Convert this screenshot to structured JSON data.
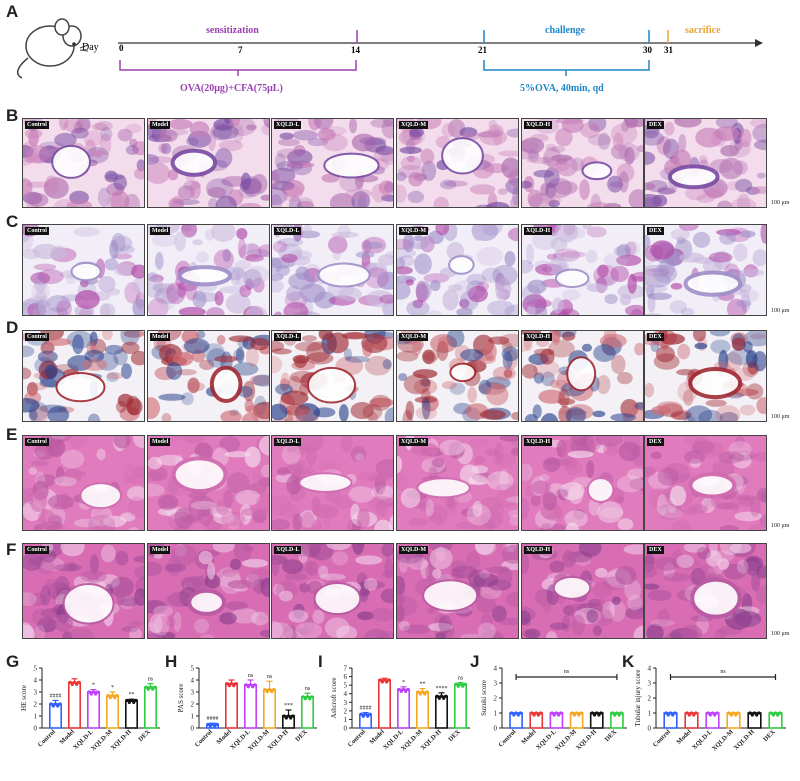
{
  "panel_letters": [
    "A",
    "B",
    "C",
    "D",
    "E",
    "F",
    "G",
    "H",
    "I",
    "J",
    "K"
  ],
  "timeline": {
    "day_label": "Day",
    "ticks": [
      "0",
      "7",
      "14",
      "21",
      "30",
      "31"
    ],
    "phase1_label": "sensitization",
    "phase1_dose": "OVA(20μg)+CFA(75μL)",
    "phase2_label": "challenge",
    "phase2_dose": "5%OVA, 40min, qd",
    "phase3_label": "sacrifice",
    "colors": {
      "sensitization": "#9b3fb0",
      "challenge": "#1f87c8",
      "sacrifice": "#e8a53a"
    }
  },
  "groups": [
    "Control",
    "Model",
    "XQLD-L",
    "XQLD-M",
    "XQLD-H",
    "DEX"
  ],
  "scale_bar": "100 μm",
  "stain_rows": [
    {
      "letter": "B",
      "stain": "HE lung",
      "colors": [
        "#f3dcec",
        "#7a4da3",
        "#c87db7",
        "#b070b0"
      ]
    },
    {
      "letter": "C",
      "stain": "PAS lung",
      "colors": [
        "#f2eef8",
        "#9f90c8",
        "#c9b8dc",
        "#b14aa8"
      ]
    },
    {
      "letter": "D",
      "stain": "Masson lung",
      "colors": [
        "#f3f1f5",
        "#a12b34",
        "#28418c",
        "#cf6a74"
      ]
    },
    {
      "letter": "E",
      "stain": "HE liver",
      "colors": [
        "#e07bbd",
        "#d06cb0",
        "#f5dcee",
        "#b95aa2"
      ]
    },
    {
      "letter": "F",
      "stain": "HE kidney",
      "colors": [
        "#d86db3",
        "#b85aa2",
        "#f1cce8",
        "#8b3f8d"
      ]
    }
  ],
  "chart_data": [
    {
      "type": "bar",
      "panel": "G",
      "ylabel": "HE score",
      "ylim": [
        0,
        5
      ],
      "yticks": [
        "0",
        "1",
        "2",
        "3",
        "4",
        "5"
      ],
      "categories": [
        "Control",
        "Model",
        "XQLD-L",
        "XQLD-M",
        "XQLD-H",
        "DEX"
      ],
      "values": [
        2.0,
        3.8,
        3.0,
        2.7,
        2.3,
        3.4
      ],
      "errors": [
        0.3,
        0.3,
        0.2,
        0.3,
        0.1,
        0.3
      ],
      "colors": [
        "#3060ff",
        "#e83535",
        "#c040ff",
        "#f5a623",
        "#111111",
        "#2ecc40"
      ],
      "annotations": [
        "####",
        "",
        "*",
        "*",
        "**",
        "ns"
      ]
    },
    {
      "type": "bar",
      "panel": "H",
      "ylabel": "PAS score",
      "ylim": [
        0,
        5
      ],
      "yticks": [
        "0",
        "1",
        "2",
        "3",
        "4",
        "5"
      ],
      "categories": [
        "Control",
        "Model",
        "XQLD-L",
        "XQLD-M",
        "XQLD-H",
        "DEX"
      ],
      "values": [
        0.3,
        3.7,
        3.6,
        3.2,
        1.0,
        2.6
      ],
      "errors": [
        0.1,
        0.3,
        0.4,
        0.7,
        0.5,
        0.3
      ],
      "colors": [
        "#3060ff",
        "#e83535",
        "#c040ff",
        "#f5a623",
        "#111111",
        "#2ecc40"
      ],
      "annotations": [
        "####",
        "",
        "ns",
        "ns",
        "***",
        "ns"
      ]
    },
    {
      "type": "bar",
      "panel": "I",
      "ylabel": "Ashcroft score",
      "ylim": [
        0,
        7
      ],
      "yticks": [
        "0",
        "1",
        "2",
        "3",
        "4",
        "5",
        "6",
        "7"
      ],
      "categories": [
        "Control",
        "Model",
        "XQLD-L",
        "XQLD-M",
        "XQLD-H",
        "DEX"
      ],
      "values": [
        1.6,
        5.6,
        4.5,
        4.2,
        3.7,
        5.1
      ],
      "errors": [
        0.2,
        0.2,
        0.3,
        0.4,
        0.4,
        0.2
      ],
      "colors": [
        "#3060ff",
        "#e83535",
        "#c040ff",
        "#f5a623",
        "#111111",
        "#2ecc40"
      ],
      "annotations": [
        "####",
        "",
        "*",
        "**",
        "****",
        "ns"
      ]
    },
    {
      "type": "bar",
      "panel": "J",
      "ylabel": "Suzuki score",
      "ylim": [
        0,
        4
      ],
      "yticks": [
        "0",
        "1",
        "2",
        "3",
        "4"
      ],
      "categories": [
        "Control",
        "Model",
        "XQLD-L",
        "XQLD-M",
        "XQLD-H",
        "DEX"
      ],
      "values": [
        1,
        1,
        1,
        1,
        1,
        1
      ],
      "errors": [
        0,
        0,
        0,
        0,
        0,
        0
      ],
      "colors": [
        "#3060ff",
        "#e83535",
        "#c040ff",
        "#f5a623",
        "#111111",
        "#2ecc40"
      ],
      "annotations": [
        "",
        "",
        "",
        "",
        "",
        ""
      ],
      "bracket": "ns"
    },
    {
      "type": "bar",
      "panel": "K",
      "ylabel": "Tubular injury score",
      "ylim": [
        0,
        4
      ],
      "yticks": [
        "0",
        "1",
        "2",
        "3",
        "4"
      ],
      "categories": [
        "Control",
        "Model",
        "XQLD-L",
        "XQLD-M",
        "XQLD-H",
        "DEX"
      ],
      "values": [
        1,
        1,
        1,
        1,
        1,
        1
      ],
      "errors": [
        0,
        0,
        0,
        0,
        0,
        0
      ],
      "colors": [
        "#3060ff",
        "#e83535",
        "#c040ff",
        "#f5a623",
        "#111111",
        "#2ecc40"
      ],
      "annotations": [
        "",
        "",
        "",
        "",
        "",
        ""
      ],
      "bracket": "ns"
    }
  ]
}
